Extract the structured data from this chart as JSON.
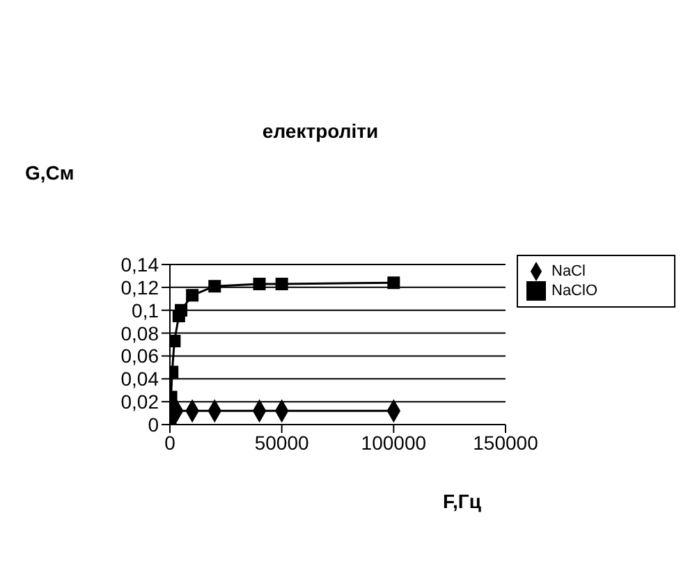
{
  "chart_data": {
    "type": "line",
    "title": "електроліти",
    "xlabel": "F,Гц",
    "ylabel": "G,См",
    "xlim": [
      0,
      150000
    ],
    "xticks": [
      0,
      50000,
      100000,
      150000
    ],
    "ylim": [
      0,
      0.14
    ],
    "yticks": [
      {
        "value": 0,
        "label": "0"
      },
      {
        "value": 0.02,
        "label": "0,02"
      },
      {
        "value": 0.04,
        "label": "0,04"
      },
      {
        "value": 0.06,
        "label": "0,06"
      },
      {
        "value": 0.08,
        "label": "0,08"
      },
      {
        "value": 0.1,
        "label": "0,1"
      },
      {
        "value": 0.12,
        "label": "0,12"
      },
      {
        "value": 0.14,
        "label": "0,14"
      }
    ],
    "grid": "y",
    "legend": "right",
    "line_style": "solid",
    "series": [
      {
        "name": "NaCl",
        "color": "#000000",
        "marker": "diamond",
        "x": [
          10,
          100,
          500,
          1000,
          3000,
          10000,
          20000,
          40000,
          50000,
          100000
        ],
        "values": [
          0.001,
          0.004,
          0.008,
          0.011,
          0.012,
          0.012,
          0.012,
          0.012,
          0.012,
          0.012
        ]
      },
      {
        "name": "NaClO",
        "color": "#000000",
        "marker": "square",
        "x": [
          10,
          100,
          500,
          1000,
          2000,
          4000,
          5000,
          10000,
          20000,
          40000,
          50000,
          100000
        ],
        "values": [
          0.003,
          0.012,
          0.024,
          0.046,
          0.073,
          0.095,
          0.1,
          0.113,
          0.121,
          0.123,
          0.123,
          0.124
        ]
      }
    ]
  }
}
